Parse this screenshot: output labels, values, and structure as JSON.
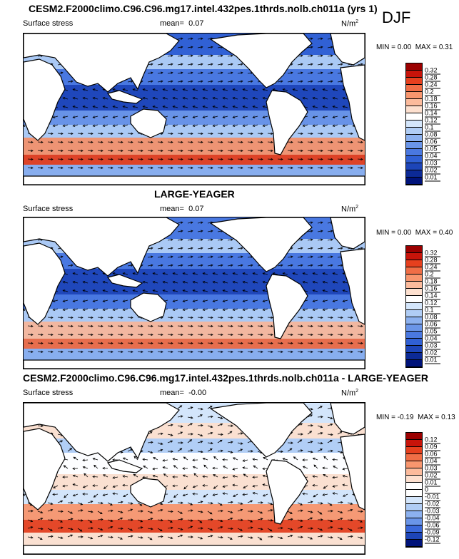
{
  "season": "DJF",
  "panels": [
    {
      "title": "CESM2.F2000climo.C96.C96.mg17.intel.432pes.1thrds.nolb.ch011a (yrs 1)",
      "variable": "Surface stress",
      "mean_label": "mean=",
      "mean_value": "0.07",
      "units": "N/m",
      "units_sup": "2",
      "min_label": "MIN =",
      "min_value": "0.00",
      "max_label": "MAX =",
      "max_value": "0.31",
      "levels": [
        "0.32",
        "0.28",
        "0.24",
        "0.2",
        "0.18",
        "0.16",
        "0.14",
        "0.12",
        "0.1",
        "0.08",
        "0.06",
        "0.05",
        "0.04",
        "0.03",
        "0.02",
        "0.01"
      ],
      "colors": [
        "#9b0000",
        "#c8140a",
        "#e6401e",
        "#f06e46",
        "#f8966e",
        "#fcbb9c",
        "#fde0cf",
        "#ffffff",
        "#d4e6fb",
        "#b0cdf5",
        "#8cb1ef",
        "#6a95e8",
        "#4a78e0",
        "#3060d4",
        "#1d45b8",
        "#0c2a96",
        "#00137a"
      ]
    },
    {
      "title": "LARGE-YEAGER",
      "variable": "Surface stress",
      "mean_label": "mean=",
      "mean_value": "0.07",
      "units": "N/m",
      "units_sup": "2",
      "min_label": "MIN =",
      "min_value": "0.00",
      "max_label": "MAX =",
      "max_value": "0.40",
      "levels": [
        "0.32",
        "0.28",
        "0.24",
        "0.2",
        "0.18",
        "0.16",
        "0.14",
        "0.12",
        "0.1",
        "0.08",
        "0.06",
        "0.05",
        "0.04",
        "0.03",
        "0.02",
        "0.01"
      ],
      "colors": [
        "#9b0000",
        "#c8140a",
        "#e6401e",
        "#f06e46",
        "#f8966e",
        "#fcbb9c",
        "#fde0cf",
        "#ffffff",
        "#d4e6fb",
        "#b0cdf5",
        "#8cb1ef",
        "#6a95e8",
        "#4a78e0",
        "#3060d4",
        "#1d45b8",
        "#0c2a96",
        "#00137a"
      ]
    },
    {
      "title": "CESM2.F2000climo.C96.C96.mg17.intel.432pes.1thrds.nolb.ch011a - LARGE-YEAGER",
      "variable": "Surface stress",
      "mean_label": "mean=",
      "mean_value": "-0.00",
      "units": "N/m",
      "units_sup": "2",
      "min_label": "MIN =",
      "min_value": "-0.19",
      "max_label": "MAX =",
      "max_value": "0.13",
      "levels": [
        "0.12",
        "0.09",
        "0.06",
        "0.04",
        "0.03",
        "0.02",
        "0.01",
        "0",
        "-0.01",
        "-0.02",
        "-0.03",
        "-0.04",
        "-0.06",
        "-0.09",
        "-0.12"
      ],
      "colors": [
        "#9b0000",
        "#c8140a",
        "#e6401e",
        "#f06e46",
        "#f8966e",
        "#fcbb9c",
        "#fde0cf",
        "#ffffff",
        "#ffffff",
        "#d4e6fb",
        "#b0cdf5",
        "#8cb1ef",
        "#6a95e8",
        "#3a68da",
        "#1d45b8",
        "#00137a"
      ]
    }
  ],
  "chart_data": [
    {
      "type": "heatmap",
      "title": "CESM2.F2000climo.C96.C96.mg17.intel.432pes.1thrds.nolb.ch011a (yrs 1)",
      "variable": "Surface stress",
      "mean": 0.07,
      "min": 0.0,
      "max": 0.31,
      "units": "N/m2",
      "colorbar_levels": [
        0.01,
        0.02,
        0.03,
        0.04,
        0.05,
        0.06,
        0.08,
        0.1,
        0.12,
        0.14,
        0.16,
        0.18,
        0.2,
        0.24,
        0.28,
        0.32
      ]
    },
    {
      "type": "heatmap",
      "title": "LARGE-YEAGER",
      "variable": "Surface stress",
      "mean": 0.07,
      "min": 0.0,
      "max": 0.4,
      "units": "N/m2",
      "colorbar_levels": [
        0.01,
        0.02,
        0.03,
        0.04,
        0.05,
        0.06,
        0.08,
        0.1,
        0.12,
        0.14,
        0.16,
        0.18,
        0.2,
        0.24,
        0.28,
        0.32
      ]
    },
    {
      "type": "heatmap",
      "title": "CESM2.F2000climo.C96.C96.mg17.intel.432pes.1thrds.nolb.ch011a - LARGE-YEAGER",
      "variable": "Surface stress",
      "mean": -0.0,
      "min": -0.19,
      "max": 0.13,
      "units": "N/m2",
      "colorbar_levels": [
        -0.12,
        -0.09,
        -0.06,
        -0.04,
        -0.03,
        -0.02,
        -0.01,
        0,
        0.01,
        0.02,
        0.03,
        0.04,
        0.06,
        0.09,
        0.12
      ]
    }
  ]
}
